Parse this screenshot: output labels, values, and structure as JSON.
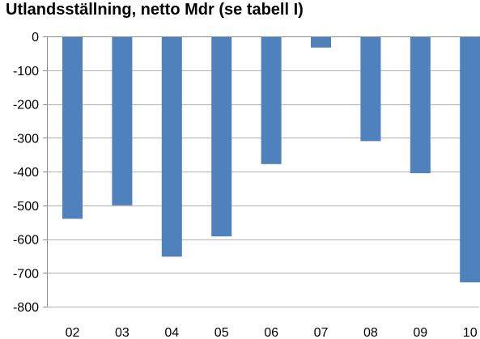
{
  "chart_data": {
    "type": "bar",
    "title": "Utlandsställning, netto Mdr (se tabell I)",
    "xlabel": "",
    "ylabel": "",
    "categories": [
      "02",
      "03",
      "04",
      "05",
      "06",
      "07",
      "08",
      "09",
      "10"
    ],
    "values": [
      -540,
      -500,
      -652,
      -592,
      -378,
      -33,
      -310,
      -405,
      -728
    ],
    "ylim": [
      -800,
      0
    ],
    "yticks": [
      0,
      -100,
      -200,
      -300,
      -400,
      -500,
      -600,
      -700,
      -800
    ],
    "grid": true,
    "legend": "none",
    "bar_color": "#4f81bd"
  }
}
